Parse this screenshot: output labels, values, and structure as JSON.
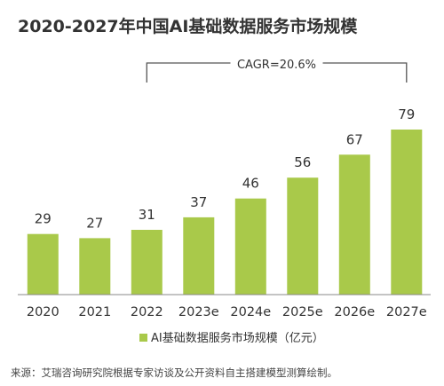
{
  "chart_data": {
    "type": "bar",
    "title": "2020-2027年中国AI基础数据服务市场规模",
    "categories": [
      "2020",
      "2021",
      "2022",
      "2023e",
      "2024e",
      "2025e",
      "2026e",
      "2027e"
    ],
    "series": [
      {
        "name": "AI基础数据服务市场规模（亿元）",
        "values": [
          29,
          27,
          31,
          37,
          46,
          56,
          67,
          79
        ]
      }
    ],
    "ylim": [
      0,
      90
    ],
    "grid": false,
    "legend": "bottom-center",
    "annotation": {
      "text": "CAGR=20.6%",
      "from_category": "2022",
      "to_category": "2027e"
    },
    "source": "来源：艾瑞咨询研究院根据专家访谈及公开资料自主搭建模型测算绘制。",
    "colors": {
      "bar": "#a9c94a",
      "text": "#333333",
      "axis": "#888888",
      "bracket": "#555555"
    }
  }
}
